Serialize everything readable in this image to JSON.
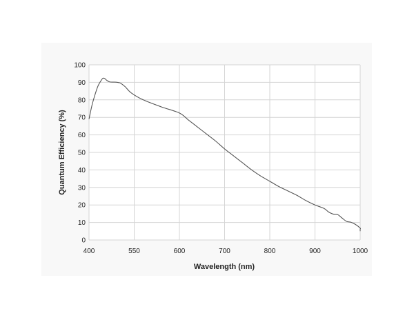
{
  "chart_data": {
    "type": "line",
    "title": "",
    "xlabel": "Wavelength (nm)",
    "ylabel": "Quantum Efficiency (%)",
    "x_ticks": [
      "400",
      "550",
      "600",
      "700",
      "800",
      "900",
      "1000"
    ],
    "y_ticks": [
      "0",
      "10",
      "20",
      "30",
      "40",
      "50",
      "60",
      "70",
      "80",
      "90",
      "100"
    ],
    "ylim": [
      0,
      100
    ],
    "grid": true,
    "series": [
      {
        "name": "",
        "color": "#555555",
        "points": [
          [
            400,
            69
          ],
          [
            410,
            77
          ],
          [
            420,
            83
          ],
          [
            430,
            88
          ],
          [
            440,
            91
          ],
          [
            446,
            92.3
          ],
          [
            452,
            92.2
          ],
          [
            460,
            91
          ],
          [
            470,
            90.2
          ],
          [
            490,
            90.1
          ],
          [
            500,
            89.8
          ],
          [
            505,
            89.5
          ],
          [
            520,
            87.5
          ],
          [
            540,
            84
          ],
          [
            560,
            80
          ],
          [
            580,
            76
          ],
          [
            600,
            72.5
          ],
          [
            620,
            68.5
          ],
          [
            640,
            64.5
          ],
          [
            660,
            60.5
          ],
          [
            680,
            56.5
          ],
          [
            700,
            52
          ],
          [
            720,
            48
          ],
          [
            740,
            44
          ],
          [
            760,
            40
          ],
          [
            780,
            36.5
          ],
          [
            800,
            33.5
          ],
          [
            820,
            30.5
          ],
          [
            840,
            28
          ],
          [
            860,
            25.5
          ],
          [
            880,
            22.5
          ],
          [
            900,
            20
          ],
          [
            920,
            18
          ],
          [
            930,
            16
          ],
          [
            940,
            14.8
          ],
          [
            950,
            14.5
          ],
          [
            960,
            12.5
          ],
          [
            970,
            10.6
          ],
          [
            980,
            10.1
          ],
          [
            990,
            8.8
          ],
          [
            1000,
            6.8
          ],
          [
            1010,
            6.3
          ],
          [
            1020,
            5.9
          ],
          [
            1030,
            5
          ]
        ]
      }
    ]
  }
}
